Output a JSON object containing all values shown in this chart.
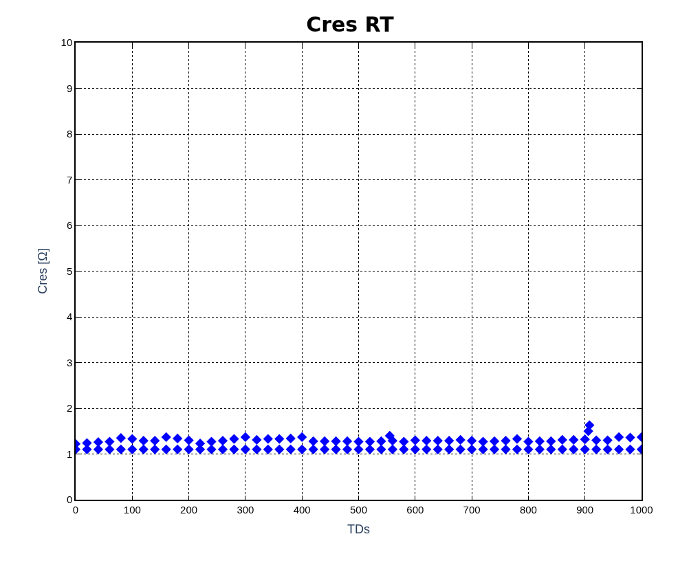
{
  "chart_data": {
    "type": "scatter",
    "title": "Cres RT",
    "xlabel": "TDs",
    "ylabel": "Cres [Ω]",
    "xlim": [
      0,
      1000
    ],
    "xticks": [
      0,
      100,
      200,
      300,
      400,
      500,
      600,
      700,
      800,
      900,
      1000
    ],
    "ylim": [
      0,
      10
    ],
    "yticks": [
      0,
      1,
      2,
      3,
      4,
      5,
      6,
      7,
      8,
      9,
      10
    ],
    "grid": true,
    "marker": "diamond",
    "series": [
      {
        "color": "#0000ff",
        "x": [
          0,
          20,
          40,
          60,
          80,
          100,
          120,
          140,
          160,
          180,
          200,
          220,
          240,
          260,
          280,
          300,
          320,
          340,
          360,
          380,
          400,
          420,
          440,
          460,
          480,
          500,
          520,
          540,
          560,
          580,
          600,
          620,
          640,
          660,
          680,
          700,
          720,
          740,
          760,
          780,
          800,
          820,
          840,
          860,
          880,
          900,
          920,
          940,
          960,
          980,
          1000,
          555,
          906,
          908,
          0,
          20,
          40,
          60,
          80,
          100,
          120,
          140,
          160,
          180,
          200,
          220,
          240,
          260,
          280,
          300,
          320,
          340,
          360,
          380,
          400,
          420,
          440,
          460,
          480,
          500,
          520,
          540,
          560,
          580,
          600,
          620,
          640,
          660,
          680,
          700,
          720,
          740,
          760,
          780,
          800,
          820,
          840,
          860,
          880,
          900,
          920,
          940,
          960,
          980,
          1000
        ],
        "values": [
          1.22,
          1.24,
          1.26,
          1.27,
          1.35,
          1.33,
          1.29,
          1.29,
          1.37,
          1.34,
          1.3,
          1.23,
          1.27,
          1.29,
          1.33,
          1.37,
          1.31,
          1.33,
          1.33,
          1.34,
          1.37,
          1.28,
          1.28,
          1.28,
          1.28,
          1.27,
          1.27,
          1.28,
          1.29,
          1.27,
          1.3,
          1.29,
          1.29,
          1.29,
          1.31,
          1.29,
          1.27,
          1.28,
          1.29,
          1.33,
          1.27,
          1.28,
          1.28,
          1.31,
          1.31,
          1.32,
          1.3,
          1.3,
          1.37,
          1.36,
          1.37,
          1.4,
          1.5,
          1.63,
          1.1,
          1.1,
          1.1,
          1.1,
          1.1,
          1.1,
          1.1,
          1.1,
          1.1,
          1.1,
          1.1,
          1.1,
          1.1,
          1.1,
          1.1,
          1.1,
          1.1,
          1.1,
          1.1,
          1.1,
          1.1,
          1.1,
          1.1,
          1.1,
          1.1,
          1.1,
          1.1,
          1.1,
          1.1,
          1.1,
          1.1,
          1.1,
          1.1,
          1.1,
          1.1,
          1.1,
          1.1,
          1.1,
          1.1,
          1.1,
          1.1,
          1.1,
          1.1,
          1.1,
          1.1,
          1.1,
          1.1,
          1.1,
          1.1,
          1.1,
          1.1
        ]
      }
    ]
  }
}
